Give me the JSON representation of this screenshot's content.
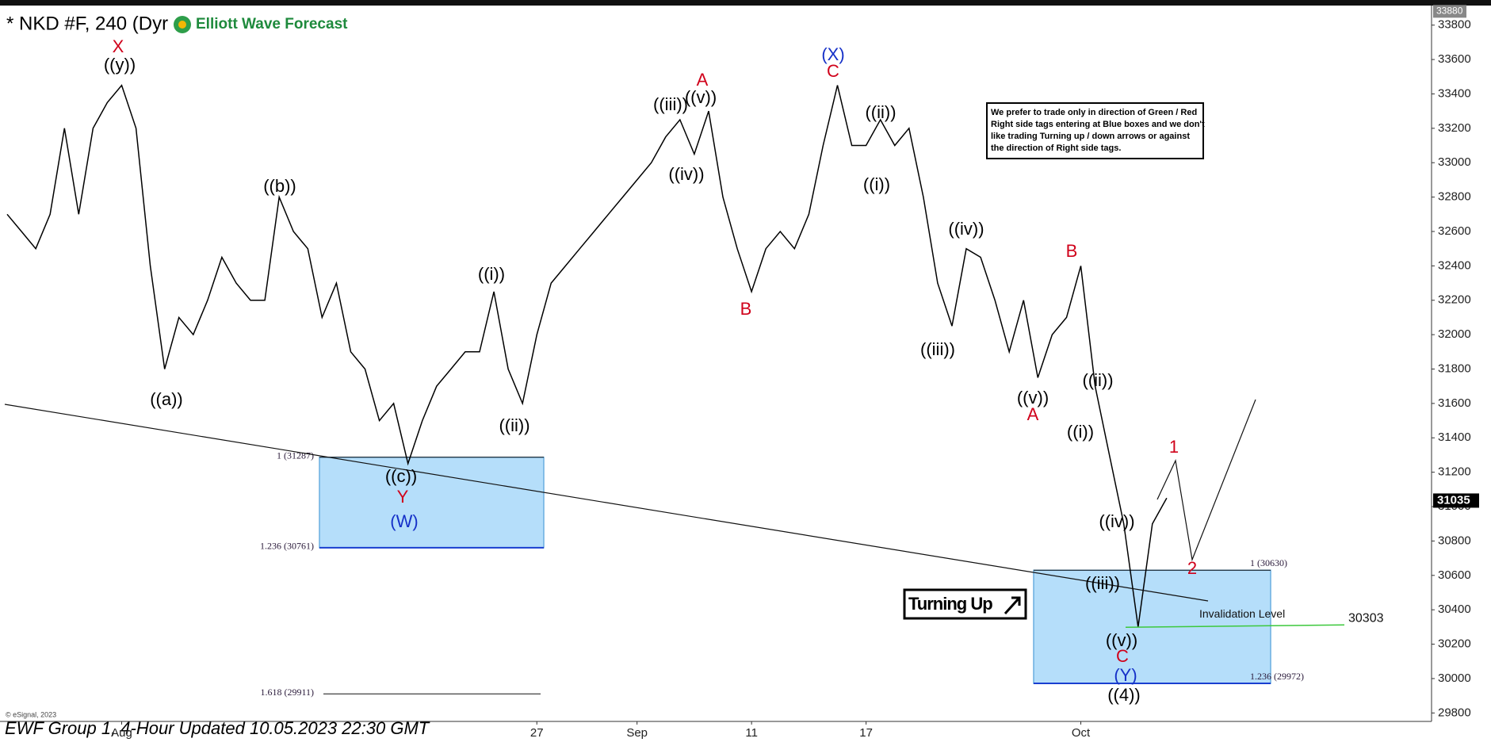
{
  "chart_data": {
    "type": "line",
    "title": "* NKD #F, 240 (Dyr",
    "logo": "Elliott Wave Forecast",
    "footer": "EWF Group 1, 4-Hour Updated 10.05.2023 22:30 GMT",
    "copyright": "© eSignal, 2023",
    "color": "#000000",
    "categories": [
      null,
      null,
      null,
      null,
      null,
      null,
      null,
      null,
      "Aug",
      null,
      null,
      null,
      null,
      null,
      null,
      null,
      null,
      null,
      null,
      null,
      null,
      null,
      null,
      null,
      null,
      null,
      null,
      null,
      null,
      null,
      null,
      null,
      null,
      null,
      null,
      null,
      null,
      "27",
      null,
      null,
      null,
      null,
      null,
      null,
      "Sep",
      null,
      null,
      null,
      null,
      null,
      null,
      null,
      "11",
      null,
      null,
      null,
      null,
      null,
      null,
      null,
      "17",
      null,
      null,
      null,
      null,
      null,
      null,
      null,
      null,
      null,
      null,
      null,
      null,
      null,
      null,
      "Oct",
      null,
      null,
      null,
      null,
      null,
      null,
      null,
      null,
      null,
      null,
      null,
      null,
      null,
      null,
      null,
      null,
      null,
      null,
      null,
      null,
      null,
      null,
      null,
      null
    ],
    "values": [
      32700,
      32600,
      32500,
      32700,
      33200,
      32700,
      33200,
      33350,
      33450,
      33200,
      32400,
      31800,
      32100,
      32000,
      32200,
      32450,
      32300,
      32200,
      32200,
      32800,
      32600,
      32500,
      32100,
      32300,
      31900,
      31800,
      31500,
      31600,
      31250,
      31500,
      31700,
      31800,
      31900,
      31900,
      32250,
      31800,
      31600,
      32000,
      32300,
      32400,
      32500,
      32600,
      32700,
      32800,
      32900,
      33000,
      33150,
      33250,
      33050,
      33300,
      32800,
      32500,
      32250,
      32500,
      32600,
      32500,
      32700,
      33100,
      33450,
      33100,
      33100,
      33250,
      33100,
      33200,
      32800,
      32300,
      32050,
      32500,
      32450,
      32200,
      31900,
      32200,
      31750,
      32000,
      32100,
      32400,
      31700,
      31300,
      30900,
      30300,
      30900,
      31050,
      null,
      null,
      null,
      null,
      null,
      null,
      null,
      null,
      null,
      null,
      null,
      null,
      null,
      null,
      null,
      null,
      null,
      null
    ],
    "ylim": [
      29760,
      33900
    ],
    "yticks": [
      29800,
      30000,
      30200,
      30400,
      30600,
      30800,
      31000,
      31200,
      31400,
      31600,
      31800,
      32000,
      32200,
      32400,
      32600,
      32800,
      33000,
      33200,
      33400,
      33600,
      33800
    ],
    "last_price": 31035,
    "high_tag": 33880,
    "fib_zones": [
      {
        "levels": [
          {
            "value": 31287,
            "label": "1 (31287)"
          },
          {
            "value": 30761,
            "label": "1.236 (30761)"
          },
          {
            "value": 29911,
            "label": "1.618 (29911)"
          }
        ]
      },
      {
        "levels": [
          {
            "value": 30630,
            "label": "1 (30630)"
          },
          {
            "value": 29972,
            "label": "1.236 (29972)"
          }
        ]
      }
    ],
    "invalidation": {
      "label": "Invalidation Level",
      "value": 30303
    },
    "turning": "Turning Up",
    "note": [
      "We prefer to trade only in direction of Green / Red",
      "Right side tags entering at Blue boxes and we don't",
      "like trading Turning up / down arrows or against",
      "the direction of Right side tags."
    ],
    "annotations": [
      {
        "text": "X",
        "color": "#d0021b"
      },
      {
        "text": "((y))",
        "color": "#000000"
      },
      {
        "text": "((a))",
        "color": "#000000"
      },
      {
        "text": "((b))",
        "color": "#000000"
      },
      {
        "text": "((c))",
        "color": "#000000"
      },
      {
        "text": "Y",
        "color": "#d0021b"
      },
      {
        "text": "(W)",
        "color": "#1530c8"
      },
      {
        "text": "((i))",
        "color": "#000000"
      },
      {
        "text": "((ii))",
        "color": "#000000"
      },
      {
        "text": "((iii))",
        "color": "#000000"
      },
      {
        "text": "((v))",
        "color": "#000000"
      },
      {
        "text": "A",
        "color": "#d0021b"
      },
      {
        "text": "((iv))",
        "color": "#000000"
      },
      {
        "text": "B",
        "color": "#d0021b"
      },
      {
        "text": "(X)",
        "color": "#1530c8"
      },
      {
        "text": "C",
        "color": "#d0021b"
      },
      {
        "text": "((ii))",
        "color": "#000000"
      },
      {
        "text": "((i))",
        "color": "#000000"
      },
      {
        "text": "((iv))",
        "color": "#000000"
      },
      {
        "text": "((iii))",
        "color": "#000000"
      },
      {
        "text": "((v))",
        "color": "#000000"
      },
      {
        "text": "A",
        "color": "#d0021b"
      },
      {
        "text": "B",
        "color": "#d0021b"
      },
      {
        "text": "((ii))",
        "color": "#000000"
      },
      {
        "text": "((i))",
        "color": "#000000"
      },
      {
        "text": "1",
        "color": "#d0021b"
      },
      {
        "text": "((iv))",
        "color": "#000000"
      },
      {
        "text": "((iii))",
        "color": "#000000"
      },
      {
        "text": "2",
        "color": "#d0021b"
      },
      {
        "text": "((v))",
        "color": "#000000"
      },
      {
        "text": "C",
        "color": "#d0021b"
      },
      {
        "text": "(Y)",
        "color": "#1530c8"
      },
      {
        "text": "((4))",
        "color": "#000000"
      }
    ]
  }
}
